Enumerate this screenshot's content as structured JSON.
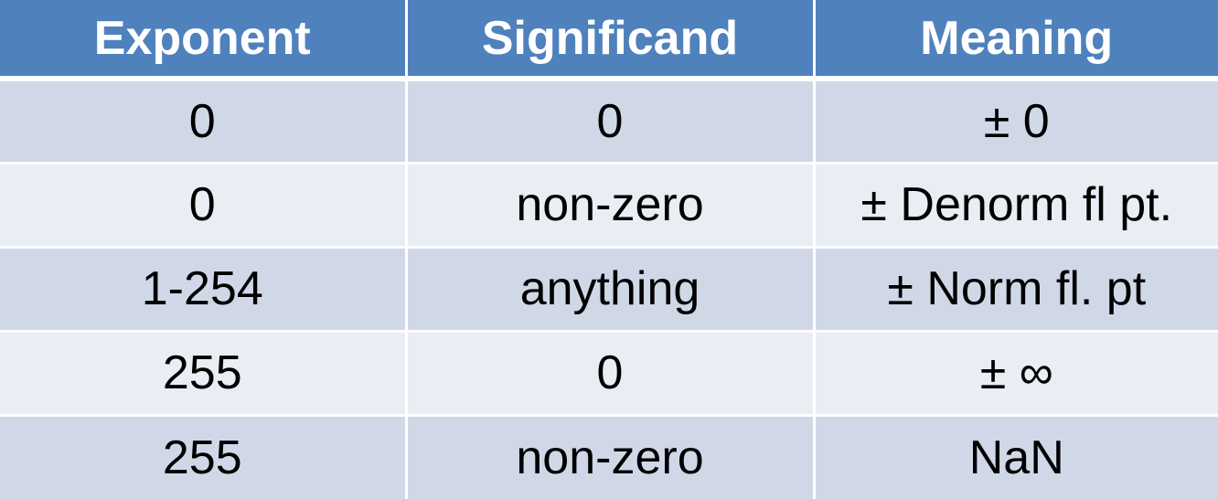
{
  "table": {
    "headers": [
      "Exponent",
      "Significand",
      "Meaning"
    ],
    "rows": [
      [
        "0",
        "0",
        "± 0"
      ],
      [
        "0",
        "non-zero",
        "± Denorm fl pt."
      ],
      [
        "1-254",
        "anything",
        "± Norm fl. pt"
      ],
      [
        "255",
        "0",
        "± ∞"
      ],
      [
        "255",
        "non-zero",
        "NaN"
      ]
    ]
  },
  "colors": {
    "header_background": "#4f81bd",
    "header_text": "#ffffff",
    "row_band_dark": "#d0d8e8",
    "row_band_light": "#e9edf4",
    "cell_text": "#000000"
  }
}
